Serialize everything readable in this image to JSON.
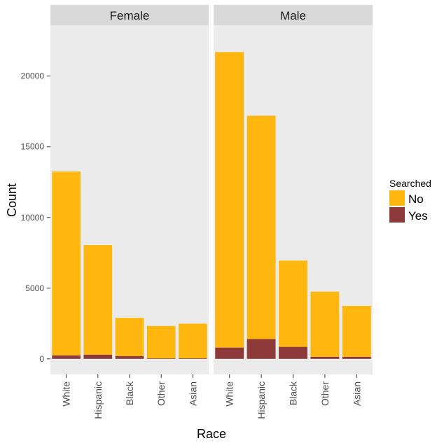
{
  "chart_data": {
    "type": "bar",
    "stacked": true,
    "facet_by": "Sex",
    "facets": [
      "Female",
      "Male"
    ],
    "categories": [
      "White",
      "Hispanic",
      "Black",
      "Other",
      "Asian"
    ],
    "series": [
      {
        "name": "No",
        "color": "#FFB710",
        "values": {
          "Female": [
            13000,
            7750,
            2700,
            2300,
            2450
          ],
          "Male": [
            20900,
            15800,
            6100,
            4600,
            3600
          ]
        }
      },
      {
        "name": "Yes",
        "color": "#8F3A3A",
        "values": {
          "Female": [
            250,
            300,
            200,
            30,
            40
          ],
          "Male": [
            800,
            1400,
            850,
            150,
            150
          ]
        }
      }
    ],
    "xlabel": "Race",
    "ylabel": "Count",
    "ylim": [
      -1100,
      23600
    ],
    "yticks": [
      0,
      5000,
      10000,
      15000,
      20000
    ],
    "legend": {
      "title": "Searched",
      "position": "right",
      "entries": [
        "No",
        "Yes"
      ]
    },
    "grid": false,
    "panel_background": "#EBEBEB",
    "strip_background": "#D9D9D9"
  }
}
